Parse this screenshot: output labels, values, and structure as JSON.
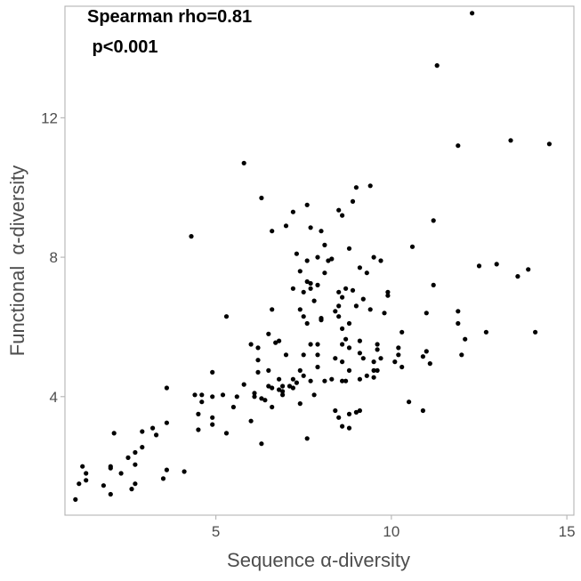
{
  "chart_data": {
    "type": "scatter",
    "xlabel": "Sequence α-diversity",
    "ylabel": "Functional  α-diversity",
    "annotations": [
      "Spearman rho=0.81",
      " p<0.001"
    ],
    "xlim": [
      0.7,
      15.2
    ],
    "ylim": [
      0.6,
      15.2
    ],
    "xticks": [
      5,
      10,
      15
    ],
    "yticks": [
      4,
      8,
      12
    ],
    "grid": false,
    "legend": "none",
    "point_color": "#000000",
    "axis_color": "#b3b3b3",
    "points": [
      [
        1.0,
        1.05
      ],
      [
        1.1,
        1.5
      ],
      [
        1.2,
        2.0
      ],
      [
        1.3,
        1.6
      ],
      [
        1.3,
        1.8
      ],
      [
        1.8,
        1.45
      ],
      [
        2.0,
        1.95
      ],
      [
        2.0,
        2.0
      ],
      [
        2.0,
        1.2
      ],
      [
        2.1,
        2.95
      ],
      [
        2.3,
        1.8
      ],
      [
        2.5,
        2.25
      ],
      [
        2.6,
        1.35
      ],
      [
        2.7,
        1.5
      ],
      [
        2.7,
        2.05
      ],
      [
        2.7,
        2.4
      ],
      [
        2.9,
        2.55
      ],
      [
        2.9,
        3.0
      ],
      [
        3.2,
        3.1
      ],
      [
        3.3,
        2.9
      ],
      [
        3.5,
        1.65
      ],
      [
        3.6,
        1.9
      ],
      [
        3.6,
        3.25
      ],
      [
        3.6,
        4.25
      ],
      [
        4.1,
        1.85
      ],
      [
        4.3,
        8.6
      ],
      [
        4.4,
        4.05
      ],
      [
        4.5,
        3.05
      ],
      [
        4.5,
        3.5
      ],
      [
        4.6,
        3.85
      ],
      [
        4.6,
        4.05
      ],
      [
        4.9,
        3.4
      ],
      [
        4.9,
        3.2
      ],
      [
        4.9,
        4.0
      ],
      [
        4.9,
        4.7
      ],
      [
        5.2,
        4.05
      ],
      [
        5.3,
        2.95
      ],
      [
        5.3,
        6.3
      ],
      [
        5.5,
        3.7
      ],
      [
        5.6,
        4.0
      ],
      [
        5.8,
        4.35
      ],
      [
        5.8,
        10.7
      ],
      [
        6.0,
        3.3
      ],
      [
        6.0,
        5.5
      ],
      [
        6.1,
        4.1
      ],
      [
        6.1,
        4.0
      ],
      [
        6.2,
        5.4
      ],
      [
        6.3,
        9.7
      ],
      [
        6.2,
        4.7
      ],
      [
        6.2,
        5.05
      ],
      [
        6.3,
        2.65
      ],
      [
        6.3,
        3.95
      ],
      [
        6.4,
        3.9
      ],
      [
        6.5,
        4.3
      ],
      [
        6.5,
        5.8
      ],
      [
        6.5,
        4.75
      ],
      [
        6.6,
        3.7
      ],
      [
        6.6,
        4.25
      ],
      [
        6.6,
        6.5
      ],
      [
        6.6,
        8.75
      ],
      [
        6.7,
        5.55
      ],
      [
        6.8,
        5.6
      ],
      [
        6.8,
        4.2
      ],
      [
        6.8,
        4.5
      ],
      [
        6.9,
        4.05
      ],
      [
        6.9,
        4.15
      ],
      [
        6.9,
        4.3
      ],
      [
        7.0,
        5.2
      ],
      [
        7.0,
        8.9
      ],
      [
        7.1,
        4.3
      ],
      [
        7.2,
        7.1
      ],
      [
        7.2,
        4.5
      ],
      [
        7.2,
        4.25
      ],
      [
        7.2,
        9.3
      ],
      [
        7.3,
        4.4
      ],
      [
        7.3,
        8.1
      ],
      [
        7.4,
        3.8
      ],
      [
        7.4,
        7.6
      ],
      [
        7.4,
        6.5
      ],
      [
        7.4,
        4.75
      ],
      [
        7.5,
        6.3
      ],
      [
        7.5,
        5.2
      ],
      [
        7.5,
        4.6
      ],
      [
        7.5,
        7.0
      ],
      [
        7.6,
        9.5
      ],
      [
        7.6,
        2.8
      ],
      [
        7.6,
        6.1
      ],
      [
        7.6,
        7.3
      ],
      [
        7.6,
        7.9
      ],
      [
        7.7,
        8.85
      ],
      [
        7.7,
        7.25
      ],
      [
        7.7,
        7.1
      ],
      [
        7.7,
        5.5
      ],
      [
        7.7,
        4.45
      ],
      [
        7.8,
        4.05
      ],
      [
        7.8,
        6.75
      ],
      [
        7.9,
        5.5
      ],
      [
        7.9,
        5.2
      ],
      [
        7.9,
        4.85
      ],
      [
        7.9,
        7.2
      ],
      [
        7.9,
        8.0
      ],
      [
        8.0,
        8.75
      ],
      [
        8.0,
        6.2
      ],
      [
        8.0,
        6.25
      ],
      [
        8.1,
        7.55
      ],
      [
        8.1,
        8.35
      ],
      [
        8.1,
        4.45
      ],
      [
        8.2,
        7.9
      ],
      [
        8.3,
        4.5
      ],
      [
        8.3,
        7.95
      ],
      [
        8.4,
        3.6
      ],
      [
        8.4,
        5.1
      ],
      [
        8.4,
        6.45
      ],
      [
        8.5,
        6.3
      ],
      [
        8.5,
        6.6
      ],
      [
        8.5,
        9.35
      ],
      [
        8.5,
        7.0
      ],
      [
        8.5,
        3.4
      ],
      [
        8.6,
        6.85
      ],
      [
        8.6,
        4.45
      ],
      [
        8.6,
        3.15
      ],
      [
        8.6,
        5.95
      ],
      [
        8.6,
        5.5
      ],
      [
        8.6,
        5.0
      ],
      [
        8.6,
        9.2
      ],
      [
        8.7,
        7.1
      ],
      [
        8.7,
        4.45
      ],
      [
        8.7,
        5.65
      ],
      [
        8.8,
        8.25
      ],
      [
        8.8,
        6.1
      ],
      [
        8.8,
        5.4
      ],
      [
        8.8,
        4.75
      ],
      [
        8.8,
        3.5
      ],
      [
        8.8,
        3.1
      ],
      [
        8.9,
        9.6
      ],
      [
        8.9,
        7.05
      ],
      [
        9.0,
        6.6
      ],
      [
        9.0,
        3.55
      ],
      [
        9.0,
        10.0
      ],
      [
        9.1,
        4.5
      ],
      [
        9.1,
        7.7
      ],
      [
        9.1,
        3.6
      ],
      [
        9.1,
        5.25
      ],
      [
        9.1,
        5.6
      ],
      [
        9.2,
        6.8
      ],
      [
        9.2,
        5.1
      ],
      [
        9.3,
        7.55
      ],
      [
        9.3,
        4.6
      ],
      [
        9.4,
        6.5
      ],
      [
        9.4,
        10.05
      ],
      [
        9.5,
        8.0
      ],
      [
        9.5,
        5.0
      ],
      [
        9.5,
        4.75
      ],
      [
        9.5,
        4.55
      ],
      [
        9.6,
        5.35
      ],
      [
        9.6,
        4.75
      ],
      [
        9.6,
        5.5
      ],
      [
        9.7,
        7.9
      ],
      [
        9.7,
        5.1
      ],
      [
        9.8,
        6.4
      ],
      [
        9.9,
        7.0
      ],
      [
        9.9,
        6.9
      ],
      [
        10.1,
        5.0
      ],
      [
        10.2,
        5.4
      ],
      [
        10.2,
        5.2
      ],
      [
        10.3,
        4.85
      ],
      [
        10.3,
        5.85
      ],
      [
        10.5,
        3.85
      ],
      [
        10.6,
        8.3
      ],
      [
        10.9,
        3.6
      ],
      [
        10.9,
        5.15
      ],
      [
        11.0,
        5.3
      ],
      [
        11.0,
        6.4
      ],
      [
        11.1,
        4.95
      ],
      [
        11.2,
        9.05
      ],
      [
        11.2,
        7.2
      ],
      [
        11.3,
        13.5
      ],
      [
        11.9,
        11.2
      ],
      [
        11.9,
        6.45
      ],
      [
        11.9,
        6.1
      ],
      [
        12.0,
        5.2
      ],
      [
        12.1,
        5.65
      ],
      [
        12.3,
        15.0
      ],
      [
        12.5,
        7.75
      ],
      [
        12.7,
        5.85
      ],
      [
        13.0,
        7.8
      ],
      [
        13.4,
        11.35
      ],
      [
        13.6,
        7.45
      ],
      [
        13.9,
        7.65
      ],
      [
        14.1,
        5.85
      ],
      [
        14.5,
        11.25
      ]
    ]
  }
}
